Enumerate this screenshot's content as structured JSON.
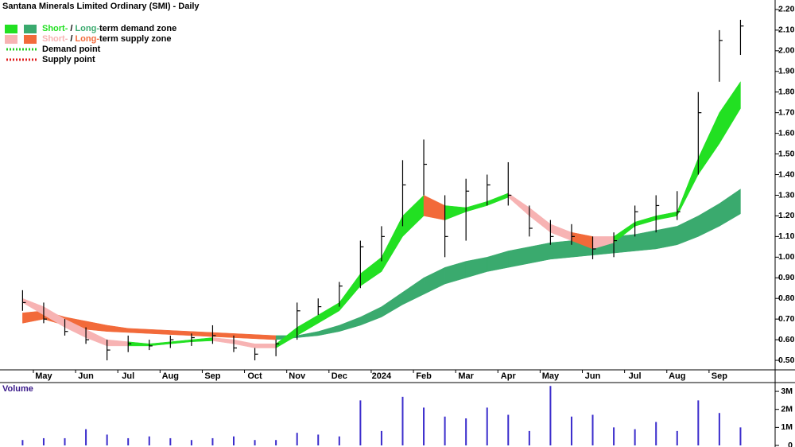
{
  "chart_data": {
    "type": "ohlc_zones",
    "title": "Santana Minerals Limited Ordinary (SMI) - Daily",
    "legend": {
      "demand": {
        "short": "Short-",
        "sep": "/",
        "long": "Long-",
        "rest": "term demand zone"
      },
      "supply": {
        "short": "Short-",
        "sep": "/",
        "long": "Long-",
        "rest": "term supply zone"
      },
      "demand_point": "Demand point",
      "supply_point": "Supply point"
    },
    "colors": {
      "short_demand": "#22e022",
      "long_demand": "#3aaa6e",
      "short_supply": "#f7b3b3",
      "long_supply": "#f26a3a",
      "demand_point": "#22cc22",
      "supply_point": "#e02020",
      "bar": "#000000",
      "volume": "#3a2ccc"
    },
    "categories": [
      null,
      "May",
      null,
      "Jun",
      null,
      "Jul",
      null,
      "Aug",
      null,
      "Sep",
      null,
      "Oct",
      null,
      "Nov",
      null,
      "Dec",
      null,
      "2024",
      null,
      "Feb",
      null,
      "Mar",
      null,
      "Apr",
      null,
      "May",
      null,
      "Jun",
      null,
      "Jul",
      null,
      "Aug",
      null,
      "Sep",
      null
    ],
    "low": [
      0.74,
      0.68,
      0.62,
      0.58,
      0.5,
      0.54,
      0.55,
      0.56,
      0.57,
      0.58,
      0.54,
      0.5,
      0.52,
      0.6,
      0.72,
      0.76,
      0.85,
      0.98,
      1.15,
      1.3,
      1.0,
      1.08,
      1.25,
      1.25,
      1.1,
      1.06,
      1.06,
      0.99,
      1.0,
      1.1,
      1.12,
      1.18,
      1.4,
      1.85,
      1.98
    ],
    "high": [
      0.84,
      0.78,
      0.7,
      0.66,
      0.6,
      0.62,
      0.6,
      0.62,
      0.63,
      0.67,
      0.62,
      0.56,
      0.6,
      0.78,
      0.8,
      0.88,
      1.08,
      1.15,
      1.47,
      1.57,
      1.3,
      1.38,
      1.4,
      1.46,
      1.25,
      1.18,
      1.16,
      1.1,
      1.12,
      1.25,
      1.3,
      1.32,
      1.8,
      2.1,
      2.15
    ],
    "close": [
      0.78,
      0.7,
      0.64,
      0.6,
      0.55,
      0.58,
      0.57,
      0.6,
      0.61,
      0.62,
      0.56,
      0.53,
      0.58,
      0.74,
      0.76,
      0.86,
      1.05,
      1.1,
      1.35,
      1.45,
      1.1,
      1.32,
      1.35,
      1.3,
      1.14,
      1.1,
      1.1,
      1.04,
      1.08,
      1.22,
      1.25,
      1.22,
      1.7,
      2.05,
      2.12
    ],
    "long_zone": {
      "low": [
        0.68,
        0.7,
        0.67,
        0.65,
        0.64,
        0.635,
        0.63,
        0.625,
        0.62,
        0.615,
        0.61,
        0.605,
        0.6,
        0.61,
        0.62,
        0.64,
        0.67,
        0.71,
        0.77,
        0.82,
        0.87,
        0.9,
        0.93,
        0.95,
        0.97,
        0.99,
        1.0,
        1.01,
        1.02,
        1.03,
        1.04,
        1.06,
        1.1,
        1.15,
        1.21
      ],
      "high": [
        0.73,
        0.74,
        0.71,
        0.69,
        0.67,
        0.655,
        0.65,
        0.645,
        0.64,
        0.635,
        0.63,
        0.625,
        0.62,
        0.62,
        0.64,
        0.67,
        0.71,
        0.76,
        0.83,
        0.9,
        0.95,
        0.98,
        1.0,
        1.03,
        1.05,
        1.07,
        1.08,
        1.09,
        1.1,
        1.11,
        1.13,
        1.15,
        1.2,
        1.26,
        1.33
      ],
      "state": [
        "long_demand",
        "long_supply",
        "long_supply",
        "long_supply",
        "long_supply",
        "long_supply",
        "long_supply",
        "long_supply",
        "long_supply",
        "long_supply",
        "long_supply",
        "long_supply",
        "long_supply",
        "long_demand",
        "long_demand",
        "long_demand",
        "long_demand",
        "long_demand",
        "long_demand",
        "long_demand",
        "long_demand",
        "long_demand",
        "long_demand",
        "long_demand",
        "long_demand",
        "long_demand",
        "long_demand",
        "long_demand",
        "long_demand",
        "long_demand",
        "long_demand",
        "long_demand",
        "long_demand",
        "long_demand",
        "long_demand"
      ]
    },
    "short_zone": {
      "low": [
        0.78,
        0.72,
        0.66,
        0.61,
        0.57,
        0.57,
        0.57,
        0.58,
        0.59,
        0.595,
        0.58,
        0.56,
        0.56,
        0.62,
        0.68,
        0.74,
        0.86,
        0.93,
        1.1,
        1.2,
        1.18,
        1.22,
        1.25,
        1.29,
        1.2,
        1.12,
        1.08,
        1.04,
        1.07,
        1.15,
        1.18,
        1.2,
        1.4,
        1.55,
        1.72
      ],
      "high": [
        0.8,
        0.76,
        0.7,
        0.65,
        0.6,
        0.59,
        0.58,
        0.59,
        0.6,
        0.61,
        0.6,
        0.58,
        0.58,
        0.66,
        0.72,
        0.78,
        0.92,
        1.0,
        1.2,
        1.3,
        1.25,
        1.24,
        1.27,
        1.31,
        1.24,
        1.16,
        1.12,
        1.1,
        1.1,
        1.17,
        1.2,
        1.22,
        1.48,
        1.7,
        1.85
      ],
      "state": [
        "short_demand",
        "short_supply",
        "short_supply",
        "short_supply",
        "short_supply",
        "short_supply",
        "short_demand",
        "short_demand",
        "short_demand",
        "short_demand",
        "short_supply",
        "short_supply",
        "short_supply",
        "short_demand",
        "short_demand",
        "short_demand",
        "short_demand",
        "short_demand",
        "short_demand",
        "short_demand",
        "long_supply",
        "short_demand",
        "short_demand",
        "short_demand",
        "short_supply",
        "short_supply",
        "short_supply",
        "long_supply",
        "short_supply",
        "short_demand",
        "short_demand",
        "short_demand",
        "short_demand",
        "short_demand",
        "short_demand"
      ]
    },
    "ylim": [
      0.454,
      2.246
    ],
    "yticks": [
      {
        "value": 0.5,
        "label": "0.50"
      },
      {
        "value": 0.6,
        "label": "0.60"
      },
      {
        "value": 0.7,
        "label": "0.70"
      },
      {
        "value": 0.8,
        "label": "0.80"
      },
      {
        "value": 0.9,
        "label": "0.90"
      },
      {
        "value": 1.0,
        "label": "1.00"
      },
      {
        "value": 1.1,
        "label": "1.10"
      },
      {
        "value": 1.2,
        "label": "1.20"
      },
      {
        "value": 1.3,
        "label": "1.30"
      },
      {
        "value": 1.4,
        "label": "1.40"
      },
      {
        "value": 1.5,
        "label": "1.50"
      },
      {
        "value": 1.6,
        "label": "1.60"
      },
      {
        "value": 1.7,
        "label": "1.70"
      },
      {
        "value": 1.8,
        "label": "1.80"
      },
      {
        "value": 1.9,
        "label": "1.90"
      },
      {
        "value": 2.0,
        "label": "2.00"
      },
      {
        "value": 2.1,
        "label": "2.10"
      },
      {
        "value": 2.2,
        "label": "2.20"
      }
    ],
    "volume": {
      "title": "Volume",
      "values": [
        300000,
        400000,
        400000,
        900000,
        600000,
        400000,
        500000,
        400000,
        300000,
        400000,
        500000,
        300000,
        300000,
        700000,
        600000,
        500000,
        2500000,
        800000,
        2700000,
        2100000,
        1600000,
        1500000,
        2100000,
        1700000,
        800000,
        3300000,
        1600000,
        1700000,
        1000000,
        900000,
        1300000,
        800000,
        2500000,
        1800000,
        1000000
      ],
      "ylim": [
        0,
        3400000
      ],
      "yticks": [
        {
          "value": 0,
          "label": "0"
        },
        {
          "value": 1000000,
          "label": "1M"
        },
        {
          "value": 2000000,
          "label": "2M"
        },
        {
          "value": 3000000,
          "label": "3M"
        }
      ]
    }
  }
}
